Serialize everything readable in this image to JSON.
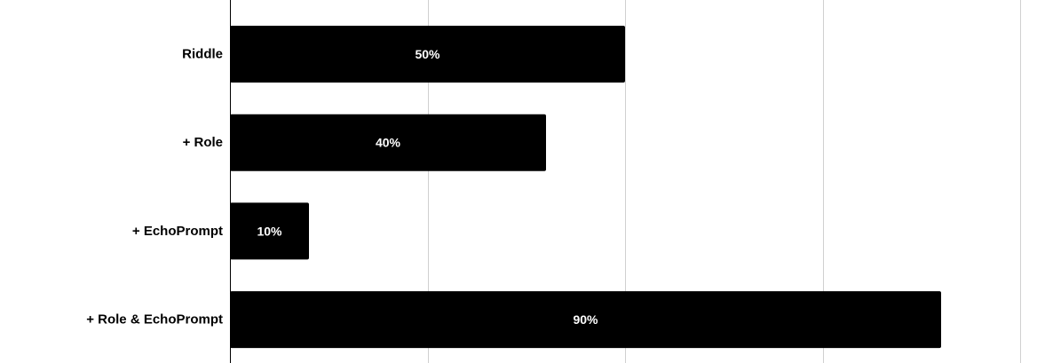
{
  "colors": {
    "bar": "#000000",
    "grid": "#d0d0d0",
    "axis": "#000000",
    "data_label": "#ffffff",
    "background": "#ffffff"
  },
  "chart_data": {
    "type": "bar",
    "orientation": "horizontal",
    "categories": [
      "Riddle",
      "+ Role",
      "+ EchoPrompt",
      "+ Role & EchoPrompt"
    ],
    "values": [
      50,
      40,
      10,
      90
    ],
    "data_labels": [
      "50%",
      "40%",
      "10%",
      "90%"
    ],
    "xlim": [
      0,
      100
    ],
    "grid": true,
    "legend": "none",
    "title": "",
    "xlabel": "",
    "ylabel": ""
  }
}
